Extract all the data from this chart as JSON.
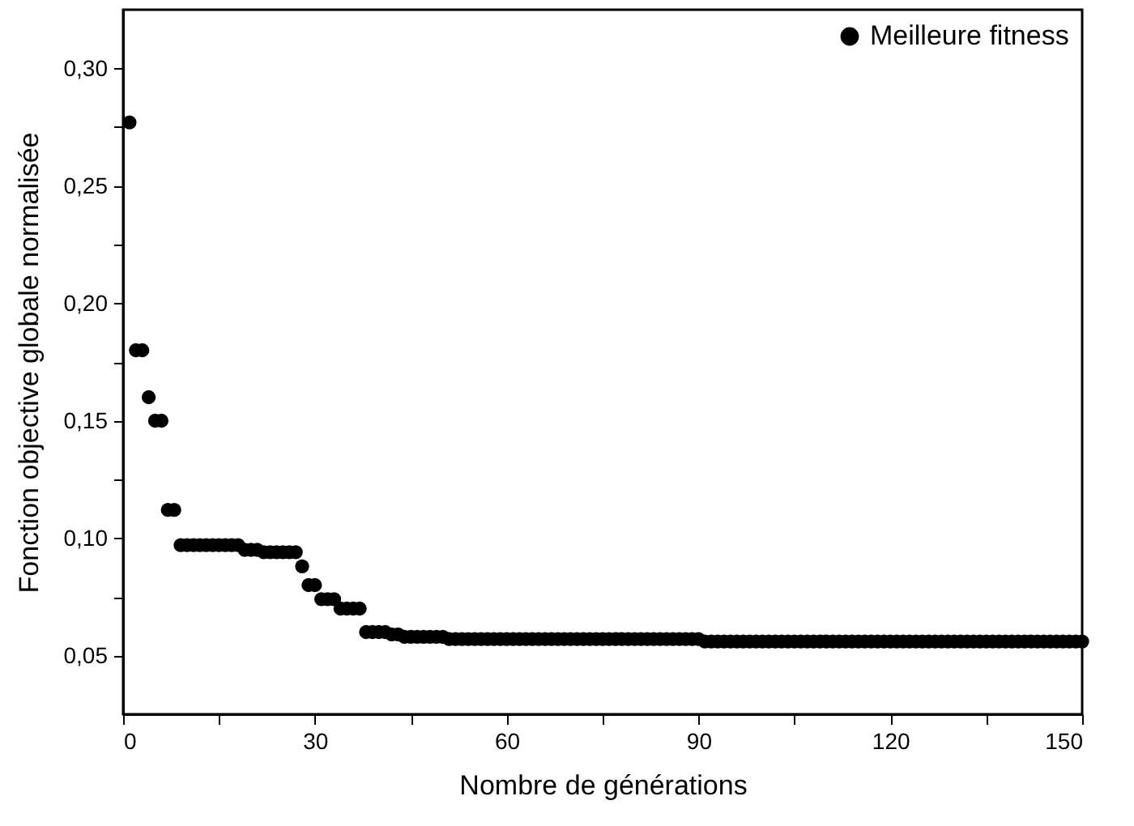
{
  "chart_data": {
    "type": "scatter",
    "xlabel": "Nombre de générations",
    "ylabel": "Fonction objective globale normalisée",
    "xlim": [
      0,
      150
    ],
    "xticks": [
      0,
      {
        "value": 15,
        "label": null
      },
      30,
      {
        "value": 45,
        "label": null
      },
      60,
      {
        "value": 75,
        "label": null
      },
      90,
      {
        "value": 105,
        "label": null
      },
      120,
      {
        "value": 135,
        "label": null
      },
      150
    ],
    "ylim": [
      0.025,
      0.325
    ],
    "yticks": [
      {
        "value": 0.05,
        "label": "0,05"
      },
      {
        "value": 0.075,
        "label": null
      },
      {
        "value": 0.1,
        "label": "0,10"
      },
      {
        "value": 0.125,
        "label": null
      },
      {
        "value": 0.15,
        "label": "0,15"
      },
      {
        "value": 0.175,
        "label": null
      },
      {
        "value": 0.2,
        "label": "0,20"
      },
      {
        "value": 0.225,
        "label": null
      },
      {
        "value": 0.25,
        "label": "0,25"
      },
      {
        "value": 0.275,
        "label": null
      },
      {
        "value": 0.3,
        "label": "0,30"
      }
    ],
    "x": [
      1,
      2,
      3,
      4,
      5,
      6,
      7,
      8,
      9,
      10,
      11,
      12,
      13,
      14,
      15,
      16,
      17,
      18,
      19,
      20,
      21,
      22,
      23,
      24,
      25,
      26,
      27,
      28,
      29,
      30,
      31,
      32,
      33,
      34,
      35,
      36,
      37,
      38,
      39,
      40,
      41,
      42,
      43,
      44,
      45,
      46,
      47,
      48,
      49,
      50,
      51,
      52,
      53,
      54,
      55,
      56,
      57,
      58,
      59,
      60,
      61,
      62,
      63,
      64,
      65,
      66,
      67,
      68,
      69,
      70,
      71,
      72,
      73,
      74,
      75,
      76,
      77,
      78,
      79,
      80,
      81,
      82,
      83,
      84,
      85,
      86,
      87,
      88,
      89,
      90,
      91,
      92,
      93,
      94,
      95,
      96,
      97,
      98,
      99,
      100,
      101,
      102,
      103,
      104,
      105,
      106,
      107,
      108,
      109,
      110,
      111,
      112,
      113,
      114,
      115,
      116,
      117,
      118,
      119,
      120,
      121,
      122,
      123,
      124,
      125,
      126,
      127,
      128,
      129,
      130,
      131,
      132,
      133,
      134,
      135,
      136,
      137,
      138,
      139,
      140,
      141,
      142,
      143,
      144,
      145,
      146,
      147,
      148,
      149,
      150
    ],
    "series": [
      {
        "name": "Meilleure fitness",
        "color": "#000000",
        "values": [
          0.277,
          0.18,
          0.18,
          0.16,
          0.15,
          0.15,
          0.112,
          0.112,
          0.097,
          0.097,
          0.097,
          0.097,
          0.097,
          0.097,
          0.097,
          0.097,
          0.097,
          0.097,
          0.095,
          0.095,
          0.095,
          0.094,
          0.094,
          0.094,
          0.094,
          0.094,
          0.094,
          0.088,
          0.08,
          0.08,
          0.074,
          0.074,
          0.074,
          0.07,
          0.07,
          0.07,
          0.07,
          0.06,
          0.06,
          0.06,
          0.06,
          0.059,
          0.059,
          0.058,
          0.058,
          0.058,
          0.058,
          0.058,
          0.058,
          0.058,
          0.057,
          0.057,
          0.057,
          0.057,
          0.057,
          0.057,
          0.057,
          0.057,
          0.057,
          0.057,
          0.057,
          0.057,
          0.057,
          0.057,
          0.057,
          0.057,
          0.057,
          0.057,
          0.057,
          0.057,
          0.057,
          0.057,
          0.057,
          0.057,
          0.057,
          0.057,
          0.057,
          0.057,
          0.057,
          0.057,
          0.057,
          0.057,
          0.057,
          0.057,
          0.057,
          0.057,
          0.057,
          0.057,
          0.057,
          0.057,
          0.056,
          0.056,
          0.056,
          0.056,
          0.056,
          0.056,
          0.056,
          0.056,
          0.056,
          0.056,
          0.056,
          0.056,
          0.056,
          0.056,
          0.056,
          0.056,
          0.056,
          0.056,
          0.056,
          0.056,
          0.056,
          0.056,
          0.056,
          0.056,
          0.056,
          0.056,
          0.056,
          0.056,
          0.056,
          0.056,
          0.056,
          0.056,
          0.056,
          0.056,
          0.056,
          0.056,
          0.056,
          0.056,
          0.056,
          0.056,
          0.056,
          0.056,
          0.056,
          0.056,
          0.056,
          0.056,
          0.056,
          0.056,
          0.056,
          0.056,
          0.056,
          0.056,
          0.056,
          0.056,
          0.056,
          0.056,
          0.056,
          0.056,
          0.056,
          0.056
        ]
      }
    ],
    "marker": "circle",
    "legend": "top right"
  }
}
